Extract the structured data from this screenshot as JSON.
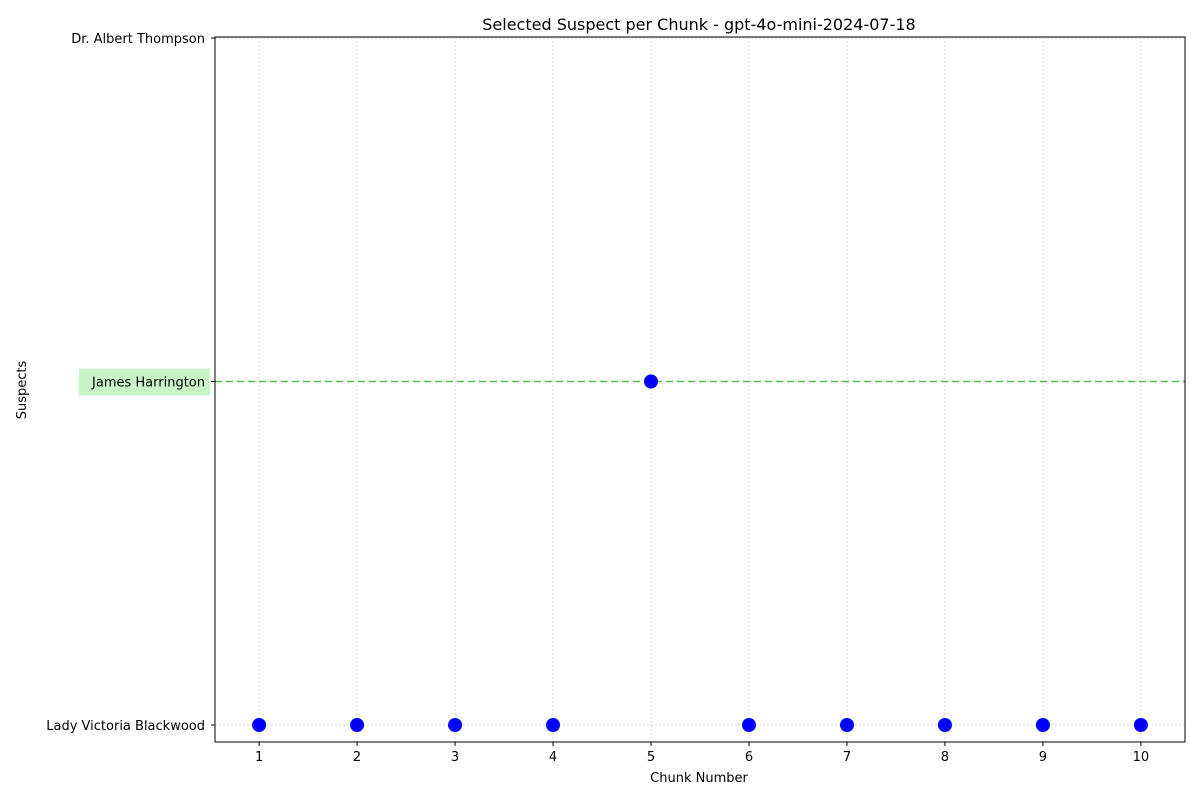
{
  "chart_data": {
    "type": "scatter",
    "title": "Selected Suspect per Chunk - gpt-4o-mini-2024-07-18",
    "xlabel": "Chunk Number",
    "ylabel": "Suspects",
    "x_ticks": [
      1,
      2,
      3,
      4,
      5,
      6,
      7,
      8,
      9,
      10
    ],
    "xlim": [
      0.55,
      10.45
    ],
    "y_categories": [
      "Lady Victoria Blackwood",
      "James Harrington",
      "Dr. Albert Thompson"
    ],
    "highlighted_category": "James Harrington",
    "grid": true,
    "points": [
      {
        "x": 1,
        "y": "Lady Victoria Blackwood"
      },
      {
        "x": 2,
        "y": "Lady Victoria Blackwood"
      },
      {
        "x": 3,
        "y": "Lady Victoria Blackwood"
      },
      {
        "x": 4,
        "y": "Lady Victoria Blackwood"
      },
      {
        "x": 5,
        "y": "James Harrington"
      },
      {
        "x": 6,
        "y": "Lady Victoria Blackwood"
      },
      {
        "x": 7,
        "y": "Lady Victoria Blackwood"
      },
      {
        "x": 8,
        "y": "Lady Victoria Blackwood"
      },
      {
        "x": 9,
        "y": "Lady Victoria Blackwood"
      },
      {
        "x": 10,
        "y": "Lady Victoria Blackwood"
      }
    ],
    "colors": {
      "point": "#0000ff",
      "highlight_line": "#5cb85c",
      "highlight_label_bg": "#c8f5c8",
      "grid": "#d9d9d9"
    }
  }
}
